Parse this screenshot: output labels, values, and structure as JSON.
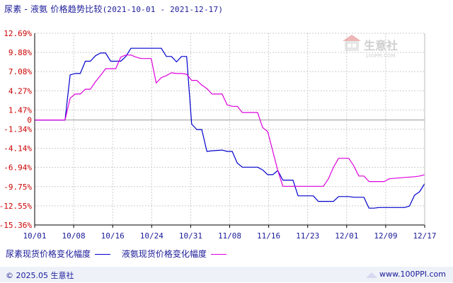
{
  "title": {
    "text": "尿素 - 液氨 价格趋势比较",
    "range": "(2021-10-01 - 2021-12-17)"
  },
  "watermark": {
    "text": "生意社",
    "sub": "100PPI.COM",
    "icon": "house-icon"
  },
  "footer": {
    "copyright": "© 2025.05 生意社",
    "url": "www.100PPI.com"
  },
  "colors": {
    "urea": "#0000cc",
    "ammonia": "#dd00dd",
    "axis": "#000000",
    "ytick": "#cc0000",
    "xtick": "#1a1a99",
    "grid": "#cccccc"
  },
  "chart_data": {
    "type": "line",
    "title": "尿素 - 液氨 价格趋势比较",
    "xlabel": "",
    "ylabel": "",
    "x_ticks": [
      "10/01",
      "10/08",
      "10/16",
      "10/24",
      "10/31",
      "11/08",
      "11/16",
      "11/23",
      "12/01",
      "12/09",
      "12/17"
    ],
    "y_ticks": [
      "12.69%",
      "9.88%",
      "7.08%",
      "4.27%",
      "1.47%",
      "0",
      "-1.34%",
      "-4.14%",
      "-6.94%",
      "-9.75%",
      "-12.55%",
      "-15.36%"
    ],
    "ylim": [
      -15.36,
      12.69
    ],
    "xlim": [
      "2021-10-01",
      "2021-12-17"
    ],
    "grid": true,
    "legend_position": "bottom-left",
    "series": [
      {
        "name": "尿素现货价格变化幅度",
        "color": "#0000cc",
        "points": [
          [
            "2021-10-01",
            0
          ],
          [
            "2021-10-04",
            0
          ],
          [
            "2021-10-07",
            0
          ],
          [
            "2021-10-08",
            6.6
          ],
          [
            "2021-10-09",
            6.8
          ],
          [
            "2021-10-10",
            6.8
          ],
          [
            "2021-10-11",
            8.6
          ],
          [
            "2021-10-12",
            8.6
          ],
          [
            "2021-10-13",
            9.4
          ],
          [
            "2021-10-14",
            9.8
          ],
          [
            "2021-10-15",
            9.8
          ],
          [
            "2021-10-16",
            8.6
          ],
          [
            "2021-10-17",
            8.6
          ],
          [
            "2021-10-18",
            8.6
          ],
          [
            "2021-10-19",
            9.3
          ],
          [
            "2021-10-20",
            10.5
          ],
          [
            "2021-10-25",
            10.5
          ],
          [
            "2021-10-26",
            10.5
          ],
          [
            "2021-10-27",
            9.3
          ],
          [
            "2021-10-28",
            9.3
          ],
          [
            "2021-10-29",
            8.5
          ],
          [
            "2021-10-30",
            9.3
          ],
          [
            "2021-10-31",
            9.3
          ],
          [
            "2021-11-01",
            -0.6
          ],
          [
            "2021-11-02",
            -1.4
          ],
          [
            "2021-11-03",
            -1.4
          ],
          [
            "2021-11-04",
            -4.6
          ],
          [
            "2021-11-05",
            -4.5
          ],
          [
            "2021-11-07",
            -4.4
          ],
          [
            "2021-11-08",
            -4.6
          ],
          [
            "2021-11-09",
            -4.6
          ],
          [
            "2021-11-10",
            -6.3
          ],
          [
            "2021-11-11",
            -6.9
          ],
          [
            "2021-11-14",
            -6.9
          ],
          [
            "2021-11-15",
            -7.3
          ],
          [
            "2021-11-16",
            -8.0
          ],
          [
            "2021-11-17",
            -8.0
          ],
          [
            "2021-11-18",
            -7.4
          ],
          [
            "2021-11-19",
            -8.8
          ],
          [
            "2021-11-21",
            -8.8
          ],
          [
            "2021-11-22",
            -11.1
          ],
          [
            "2021-11-24",
            -11.1
          ],
          [
            "2021-11-25",
            -11.1
          ],
          [
            "2021-11-26",
            -11.9
          ],
          [
            "2021-11-28",
            -11.9
          ],
          [
            "2021-11-29",
            -11.9
          ],
          [
            "2021-11-30",
            -11.2
          ],
          [
            "2021-12-02",
            -11.2
          ],
          [
            "2021-12-03",
            -11.3
          ],
          [
            "2021-12-05",
            -11.3
          ],
          [
            "2021-12-06",
            -12.9
          ],
          [
            "2021-12-07",
            -12.9
          ],
          [
            "2021-12-08",
            -12.8
          ],
          [
            "2021-12-13",
            -12.8
          ],
          [
            "2021-12-14",
            -12.6
          ],
          [
            "2021-12-15",
            -11.0
          ],
          [
            "2021-12-16",
            -10.5
          ],
          [
            "2021-12-17",
            -9.3
          ]
        ]
      },
      {
        "name": "液氨现货价格变化幅度",
        "color": "#dd00dd",
        "points": [
          [
            "2021-10-01",
            0
          ],
          [
            "2021-10-04",
            0
          ],
          [
            "2021-10-07",
            0
          ],
          [
            "2021-10-08",
            3.2
          ],
          [
            "2021-10-09",
            3.8
          ],
          [
            "2021-10-10",
            3.8
          ],
          [
            "2021-10-11",
            4.5
          ],
          [
            "2021-10-12",
            4.5
          ],
          [
            "2021-10-13",
            5.6
          ],
          [
            "2021-10-14",
            6.5
          ],
          [
            "2021-10-15",
            7.5
          ],
          [
            "2021-10-16",
            7.5
          ],
          [
            "2021-10-17",
            7.5
          ],
          [
            "2021-10-18",
            9.2
          ],
          [
            "2021-10-19",
            9.5
          ],
          [
            "2021-10-20",
            9.5
          ],
          [
            "2021-10-21",
            9.2
          ],
          [
            "2021-10-22",
            9.0
          ],
          [
            "2021-10-23",
            9.0
          ],
          [
            "2021-10-24",
            9.0
          ],
          [
            "2021-10-25",
            5.4
          ],
          [
            "2021-10-26",
            6.2
          ],
          [
            "2021-10-27",
            6.5
          ],
          [
            "2021-10-28",
            6.9
          ],
          [
            "2021-10-29",
            6.8
          ],
          [
            "2021-10-30",
            6.8
          ],
          [
            "2021-10-31",
            6.7
          ],
          [
            "2021-11-01",
            5.8
          ],
          [
            "2021-11-02",
            5.8
          ],
          [
            "2021-11-03",
            5.1
          ],
          [
            "2021-11-04",
            4.6
          ],
          [
            "2021-11-05",
            3.8
          ],
          [
            "2021-11-07",
            3.8
          ],
          [
            "2021-11-08",
            2.2
          ],
          [
            "2021-11-09",
            2.0
          ],
          [
            "2021-11-10",
            2.0
          ],
          [
            "2021-11-11",
            1.1
          ],
          [
            "2021-11-13",
            1.1
          ],
          [
            "2021-11-14",
            1.1
          ],
          [
            "2021-11-15",
            -1.1
          ],
          [
            "2021-11-16",
            -1.7
          ],
          [
            "2021-11-18",
            -7.4
          ],
          [
            "2021-11-19",
            -9.7
          ],
          [
            "2021-11-22",
            -9.7
          ],
          [
            "2021-11-26",
            -9.7
          ],
          [
            "2021-11-27",
            -9.7
          ],
          [
            "2021-11-28",
            -8.6
          ],
          [
            "2021-11-29",
            -6.9
          ],
          [
            "2021-11-30",
            -5.6
          ],
          [
            "2021-12-01",
            -5.6
          ],
          [
            "2021-12-02",
            -5.6
          ],
          [
            "2021-12-03",
            -6.7
          ],
          [
            "2021-12-04",
            -8.2
          ],
          [
            "2021-12-05",
            -8.2
          ],
          [
            "2021-12-06",
            -9.0
          ],
          [
            "2021-12-09",
            -9.0
          ],
          [
            "2021-12-10",
            -8.6
          ],
          [
            "2021-12-13",
            -8.4
          ],
          [
            "2021-12-15",
            -8.3
          ],
          [
            "2021-12-16",
            -8.2
          ],
          [
            "2021-12-17",
            -8.0
          ]
        ]
      }
    ]
  }
}
